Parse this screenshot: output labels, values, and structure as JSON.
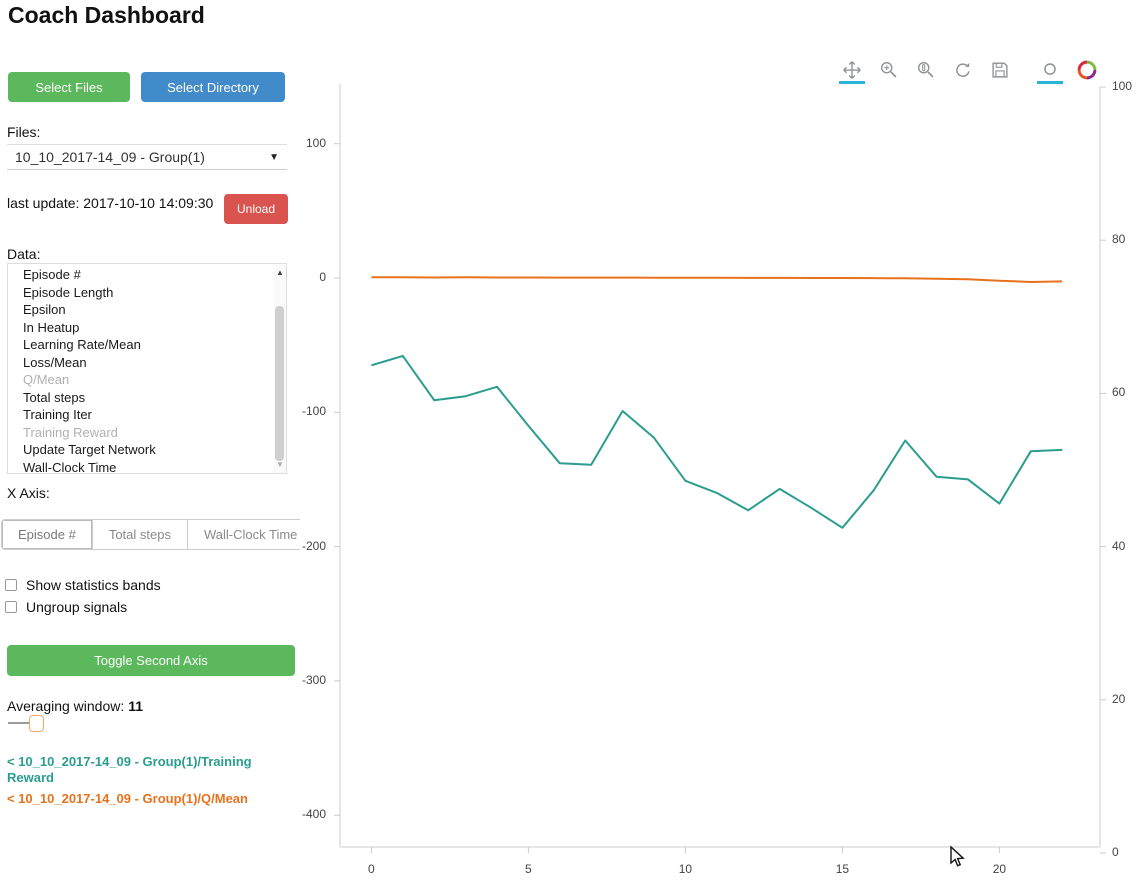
{
  "title": "Coach Dashboard",
  "colors": {
    "green_button": "#5cb85c",
    "blue_button": "#428bca",
    "red_button": "#d9534f",
    "teal_line": "#2a9d8f",
    "orange_line": "#e8721c",
    "active_tool_underline": "#2bb3d8"
  },
  "sidebar": {
    "select_files_label": "Select Files",
    "select_directory_label": "Select Directory",
    "files_label": "Files:",
    "files_selected": "10_10_2017-14_09 - Group(1)",
    "last_update": "last update: 2017-10-10 14:09:30",
    "unload_label": "Unload",
    "data_label": "Data:",
    "data_items": [
      {
        "label": "Episode #",
        "selected": false
      },
      {
        "label": "Episode Length",
        "selected": false
      },
      {
        "label": "Epsilon",
        "selected": false
      },
      {
        "label": "In Heatup",
        "selected": false
      },
      {
        "label": "Learning Rate/Mean",
        "selected": false
      },
      {
        "label": "Loss/Mean",
        "selected": false
      },
      {
        "label": "Q/Mean",
        "selected": true
      },
      {
        "label": "Total steps",
        "selected": false
      },
      {
        "label": "Training Iter",
        "selected": false
      },
      {
        "label": "Training Reward",
        "selected": true
      },
      {
        "label": "Update Target Network",
        "selected": false
      },
      {
        "label": "Wall-Clock Time",
        "selected": false
      }
    ],
    "x_axis_label": "X Axis:",
    "x_axis_options": [
      {
        "label": "Episode #",
        "active": true
      },
      {
        "label": "Total steps",
        "active": false
      },
      {
        "label": "Wall-Clock Time",
        "active": false
      }
    ],
    "checkboxes": [
      {
        "label": "Show statistics bands",
        "checked": false
      },
      {
        "label": "Ungroup signals",
        "checked": false
      }
    ],
    "toggle_second_axis_label": "Toggle Second Axis",
    "averaging_window_label": "Averaging window:",
    "averaging_window_value": "11",
    "legend": [
      {
        "label": "< 10_10_2017-14_09 - Group(1)/Training Reward",
        "color": "#2a9d8f"
      },
      {
        "label": "< 10_10_2017-14_09 - Group(1)/Q/Mean",
        "color": "#e8721c"
      }
    ]
  },
  "toolbar": {
    "tools": [
      {
        "name": "pan",
        "active": true
      },
      {
        "name": "box-zoom",
        "active": false
      },
      {
        "name": "wheel-zoom",
        "active": false
      },
      {
        "name": "reset",
        "active": false
      },
      {
        "name": "save",
        "active": false
      },
      {
        "name": "hover",
        "active": true
      }
    ],
    "logo": "bokeh"
  },
  "chart_data": {
    "type": "line",
    "title": "",
    "xlabel": "",
    "ylabel": "",
    "x": [
      0,
      1,
      2,
      3,
      4,
      5,
      6,
      7,
      8,
      9,
      10,
      11,
      12,
      13,
      14,
      15,
      16,
      17,
      18,
      19,
      20,
      21,
      22
    ],
    "series": [
      {
        "name": "10_10_2017-14_09 - Group(1)/Training Reward",
        "color": "#2a9d8f",
        "axis": "left",
        "values": [
          -65,
          -58,
          -91,
          -88,
          -81,
          -110,
          -138,
          -139,
          -99,
          -119,
          -151,
          -160,
          -173,
          -157,
          -171,
          -186,
          -158,
          -121,
          -148,
          -150,
          -168,
          -129,
          -128
        ]
      },
      {
        "name": "10_10_2017-14_09 - Group(1)/Q/Mean",
        "color": "#e8721c",
        "axis": "left",
        "values": [
          0.5,
          0.5,
          0.4,
          0.5,
          0.4,
          0.4,
          0.3,
          0.3,
          0.3,
          0.2,
          0.2,
          0.2,
          0.1,
          0.1,
          0,
          0,
          -0.1,
          -0.2,
          -0.5,
          -1,
          -2,
          -3,
          -2.5
        ]
      }
    ],
    "left_axis": {
      "ticks": [
        100,
        0,
        -100,
        -200,
        -300,
        -400
      ],
      "range": [
        -425,
        145
      ]
    },
    "right_axis": {
      "ticks": [
        100,
        80,
        60,
        40,
        20,
        0
      ],
      "range": [
        0,
        100
      ]
    },
    "x_axis": {
      "ticks": [
        0,
        5,
        10,
        15,
        20
      ],
      "range": [
        -1,
        23.2
      ]
    },
    "grid": false,
    "legend_position": "sidebar"
  }
}
